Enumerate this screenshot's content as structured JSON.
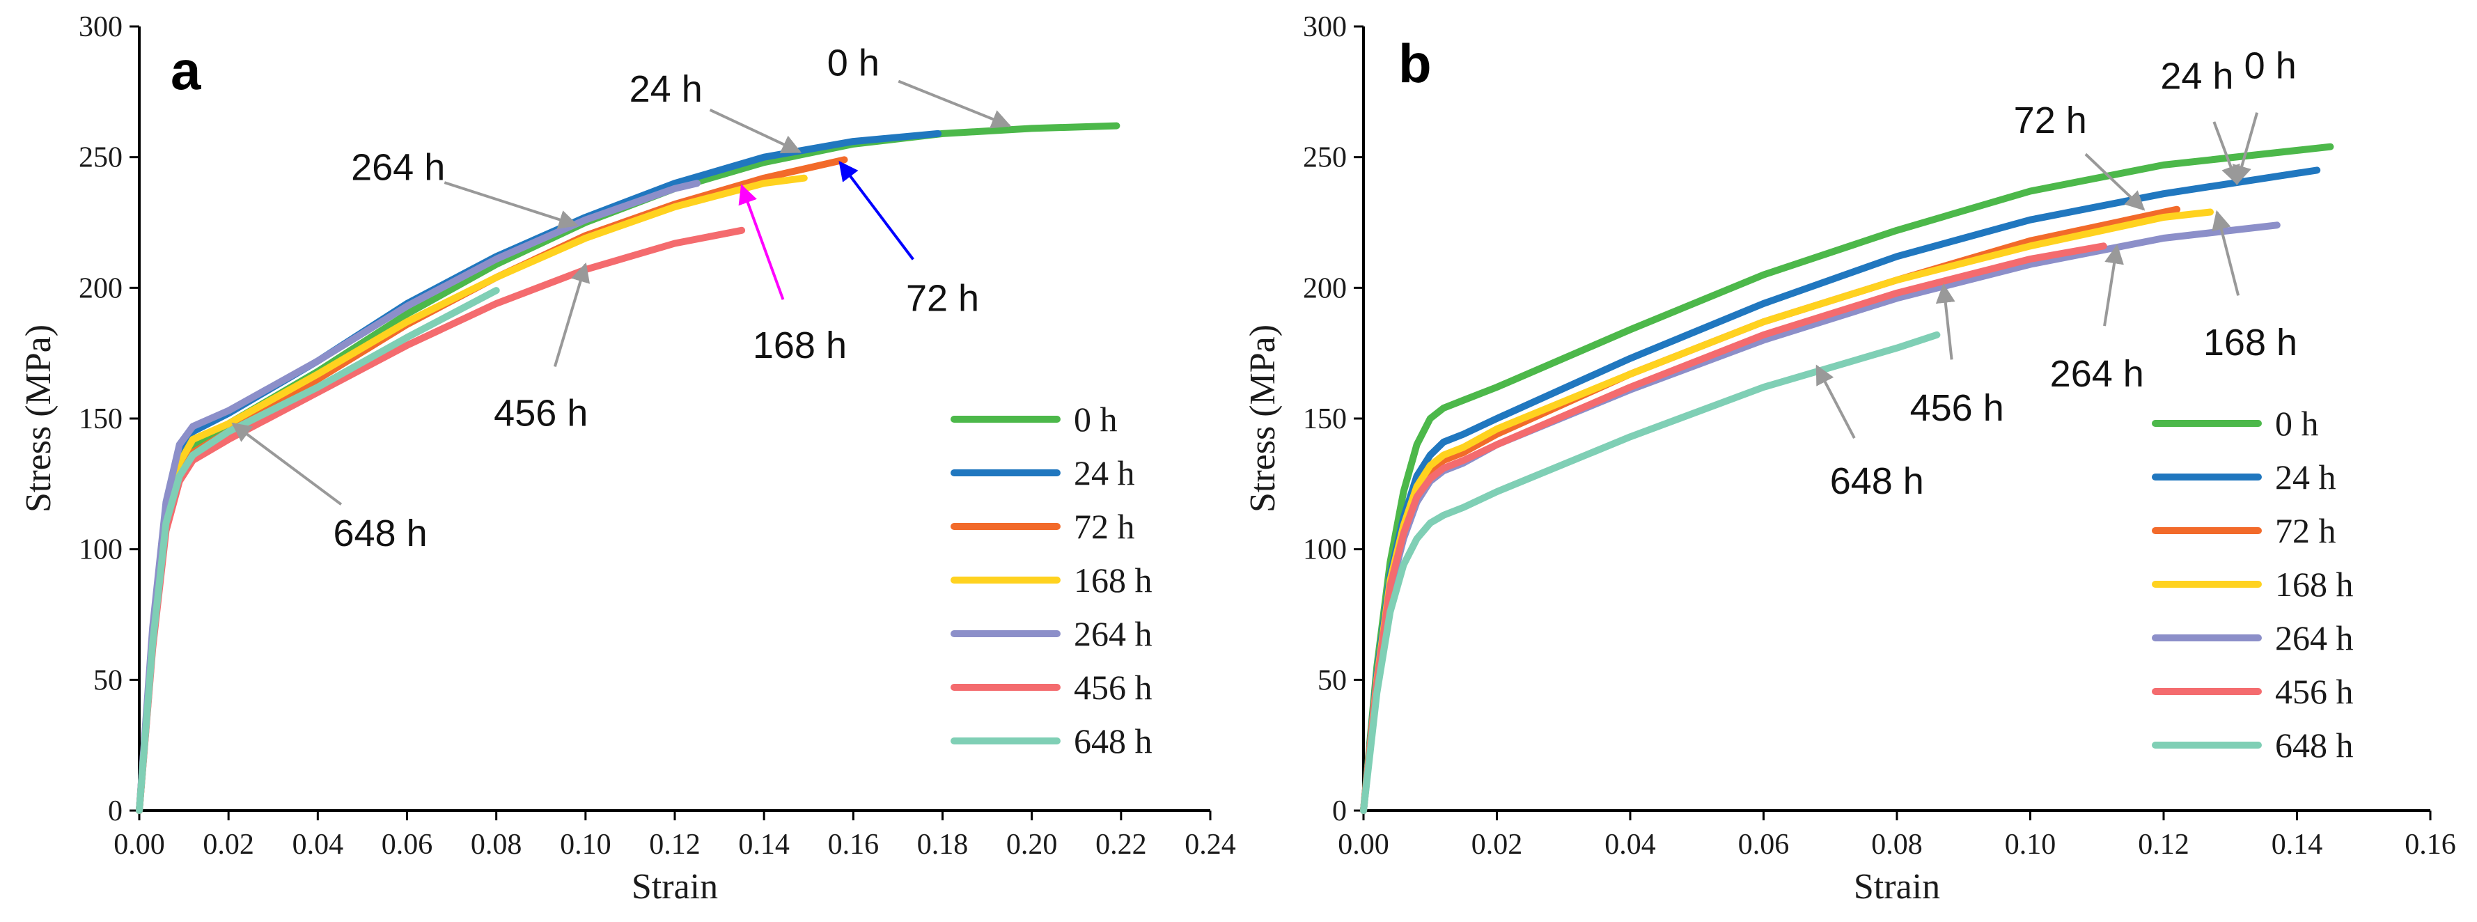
{
  "chart_data": [
    {
      "type": "line",
      "panel_label": "a",
      "xlabel": "Strain",
      "ylabel": "Stress (MPa)",
      "xlim": [
        0,
        0.24
      ],
      "ylim": [
        0,
        300
      ],
      "xticks": [
        "0.00",
        "0.02",
        "0.04",
        "0.06",
        "0.08",
        "0.10",
        "0.12",
        "0.14",
        "0.16",
        "0.18",
        "0.20",
        "0.22",
        "0.24"
      ],
      "yticks": [
        "0",
        "50",
        "100",
        "150",
        "200",
        "250",
        "300"
      ],
      "legend_position": "bottom-right",
      "series": [
        {
          "name": "0 h",
          "color": "#4cb84a",
          "x": [
            0,
            0.003,
            0.006,
            0.009,
            0.012,
            0.02,
            0.04,
            0.06,
            0.08,
            0.1,
            0.12,
            0.14,
            0.16,
            0.18,
            0.2,
            0.219
          ],
          "y": [
            0,
            65,
            110,
            132,
            140,
            148,
            168,
            190,
            209,
            225,
            238,
            248,
            255,
            259,
            261,
            262
          ]
        },
        {
          "name": "24 h",
          "color": "#2077bf",
          "x": [
            0,
            0.003,
            0.006,
            0.009,
            0.012,
            0.02,
            0.04,
            0.06,
            0.08,
            0.1,
            0.12,
            0.14,
            0.16,
            0.179
          ],
          "y": [
            0,
            68,
            115,
            138,
            145,
            152,
            172,
            194,
            212,
            227,
            240,
            250,
            256,
            259
          ]
        },
        {
          "name": "72 h",
          "color": "#f26a2a",
          "x": [
            0,
            0.003,
            0.006,
            0.009,
            0.012,
            0.02,
            0.04,
            0.06,
            0.08,
            0.1,
            0.12,
            0.14,
            0.158
          ],
          "y": [
            0,
            63,
            108,
            128,
            137,
            145,
            165,
            186,
            204,
            220,
            232,
            242,
            249
          ]
        },
        {
          "name": "168 h",
          "color": "#ffd21f",
          "x": [
            0,
            0.003,
            0.006,
            0.009,
            0.012,
            0.02,
            0.04,
            0.06,
            0.08,
            0.1,
            0.12,
            0.14,
            0.149
          ],
          "y": [
            0,
            66,
            112,
            133,
            142,
            148,
            167,
            187,
            204,
            219,
            231,
            240,
            242
          ]
        },
        {
          "name": "264 h",
          "color": "#8c8fc9",
          "x": [
            0,
            0.003,
            0.006,
            0.009,
            0.012,
            0.02,
            0.04,
            0.06,
            0.08,
            0.1,
            0.12,
            0.125
          ],
          "y": [
            0,
            70,
            118,
            140,
            147,
            153,
            172,
            193,
            211,
            226,
            238,
            240
          ]
        },
        {
          "name": "456 h",
          "color": "#f46b6e",
          "x": [
            0,
            0.003,
            0.006,
            0.009,
            0.012,
            0.02,
            0.04,
            0.06,
            0.08,
            0.1,
            0.12,
            0.135
          ],
          "y": [
            0,
            62,
            107,
            126,
            134,
            142,
            160,
            178,
            194,
            207,
            217,
            222
          ]
        },
        {
          "name": "648 h",
          "color": "#7fcfb5",
          "x": [
            0,
            0.003,
            0.006,
            0.009,
            0.012,
            0.02,
            0.04,
            0.06,
            0.08
          ],
          "y": [
            0,
            64,
            110,
            128,
            136,
            145,
            162,
            181,
            199
          ]
        }
      ],
      "annotations": [
        {
          "text": "0 h",
          "arrow_color": "#999999",
          "text_at": [
            0.16,
            286
          ],
          "tip": [
            0.195,
            262
          ]
        },
        {
          "text": "24 h",
          "arrow_color": "#999999",
          "text_at": [
            0.118,
            276
          ],
          "tip": [
            0.148,
            252
          ]
        },
        {
          "text": "264 h",
          "arrow_color": "#999999",
          "text_at": [
            0.058,
            246
          ],
          "tip": [
            0.098,
            224
          ]
        },
        {
          "text": "72 h",
          "arrow_color": "#0000ff",
          "text_at": [
            0.18,
            196
          ],
          "tip": [
            0.157,
            248
          ]
        },
        {
          "text": "168 h",
          "arrow_color": "#ff00ff",
          "text_at": [
            0.148,
            178
          ],
          "tip": [
            0.135,
            239
          ]
        },
        {
          "text": "456 h",
          "arrow_color": "#999999",
          "text_at": [
            0.09,
            152
          ],
          "tip": [
            0.1,
            209
          ]
        },
        {
          "text": "648 h",
          "arrow_color": "#999999",
          "text_at": [
            0.054,
            106
          ],
          "tip": [
            0.021,
            148
          ]
        }
      ]
    },
    {
      "type": "line",
      "panel_label": "b",
      "xlabel": "Strain",
      "ylabel": "Stress (MPa)",
      "xlim": [
        0,
        0.16
      ],
      "ylim": [
        0,
        300
      ],
      "xticks": [
        "0.00",
        "0.02",
        "0.04",
        "0.06",
        "0.08",
        "0.10",
        "0.12",
        "0.14",
        "0.16"
      ],
      "yticks": [
        "0",
        "50",
        "100",
        "150",
        "200",
        "250",
        "300"
      ],
      "legend_position": "bottom-right",
      "series": [
        {
          "name": "0 h",
          "color": "#4cb84a",
          "x": [
            0,
            0.002,
            0.004,
            0.006,
            0.008,
            0.01,
            0.012,
            0.015,
            0.02,
            0.04,
            0.06,
            0.08,
            0.1,
            0.12,
            0.145
          ],
          "y": [
            0,
            55,
            95,
            122,
            140,
            150,
            154,
            157,
            162,
            184,
            205,
            222,
            237,
            247,
            254
          ]
        },
        {
          "name": "24 h",
          "color": "#2077bf",
          "x": [
            0,
            0.002,
            0.004,
            0.006,
            0.008,
            0.01,
            0.012,
            0.015,
            0.02,
            0.04,
            0.06,
            0.08,
            0.1,
            0.12,
            0.143
          ],
          "y": [
            0,
            52,
            90,
            112,
            128,
            136,
            141,
            144,
            150,
            173,
            194,
            212,
            226,
            236,
            245
          ]
        },
        {
          "name": "72 h",
          "color": "#f26a2a",
          "x": [
            0,
            0.002,
            0.004,
            0.006,
            0.008,
            0.01,
            0.012,
            0.015,
            0.02,
            0.04,
            0.06,
            0.08,
            0.1,
            0.122
          ],
          "y": [
            0,
            50,
            87,
            108,
            122,
            130,
            134,
            137,
            144,
            167,
            187,
            203,
            218,
            230
          ]
        },
        {
          "name": "168 h",
          "color": "#ffd21f",
          "x": [
            0,
            0.002,
            0.004,
            0.006,
            0.008,
            0.01,
            0.012,
            0.015,
            0.02,
            0.04,
            0.06,
            0.08,
            0.1,
            0.12,
            0.127
          ],
          "y": [
            0,
            50,
            88,
            109,
            124,
            132,
            136,
            139,
            146,
            167,
            187,
            203,
            216,
            227,
            229
          ]
        },
        {
          "name": "264 h",
          "color": "#8c8fc9",
          "x": [
            0,
            0.002,
            0.004,
            0.006,
            0.008,
            0.01,
            0.012,
            0.015,
            0.02,
            0.04,
            0.06,
            0.08,
            0.1,
            0.12,
            0.137
          ],
          "y": [
            0,
            48,
            84,
            104,
            118,
            126,
            130,
            133,
            140,
            161,
            180,
            196,
            209,
            219,
            224
          ]
        },
        {
          "name": "456 h",
          "color": "#f46b6e",
          "x": [
            0,
            0.002,
            0.004,
            0.006,
            0.008,
            0.01,
            0.012,
            0.015,
            0.02,
            0.04,
            0.06,
            0.08,
            0.1,
            0.111
          ],
          "y": [
            0,
            49,
            86,
            106,
            120,
            127,
            131,
            134,
            140,
            162,
            182,
            198,
            211,
            216
          ]
        },
        {
          "name": "648 h",
          "color": "#7fcfb5",
          "x": [
            0,
            0.002,
            0.004,
            0.006,
            0.008,
            0.01,
            0.012,
            0.015,
            0.02,
            0.04,
            0.06,
            0.08,
            0.086
          ],
          "y": [
            0,
            45,
            76,
            94,
            104,
            110,
            113,
            116,
            122,
            143,
            162,
            177,
            182
          ]
        }
      ],
      "annotations": [
        {
          "text": "0 h",
          "arrow_color": "#999999",
          "text_at": [
            0.136,
            285
          ],
          "tip": [
            0.131,
            240
          ]
        },
        {
          "text": "24 h",
          "arrow_color": "#999999",
          "text_at": [
            0.125,
            281
          ],
          "tip": [
            0.131,
            240
          ]
        },
        {
          "text": "72 h",
          "arrow_color": "#999999",
          "text_at": [
            0.103,
            264
          ],
          "tip": [
            0.117,
            230
          ]
        },
        {
          "text": "168 h",
          "arrow_color": "#999999",
          "text_at": [
            0.133,
            179
          ],
          "tip": [
            0.128,
            229
          ]
        },
        {
          "text": "264 h",
          "arrow_color": "#999999",
          "text_at": [
            0.11,
            167
          ],
          "tip": [
            0.113,
            216
          ]
        },
        {
          "text": "456 h",
          "arrow_color": "#999999",
          "text_at": [
            0.089,
            154
          ],
          "tip": [
            0.087,
            201
          ]
        },
        {
          "text": "648 h",
          "arrow_color": "#999999",
          "text_at": [
            0.077,
            126
          ],
          "tip": [
            0.068,
            170
          ]
        }
      ]
    }
  ]
}
